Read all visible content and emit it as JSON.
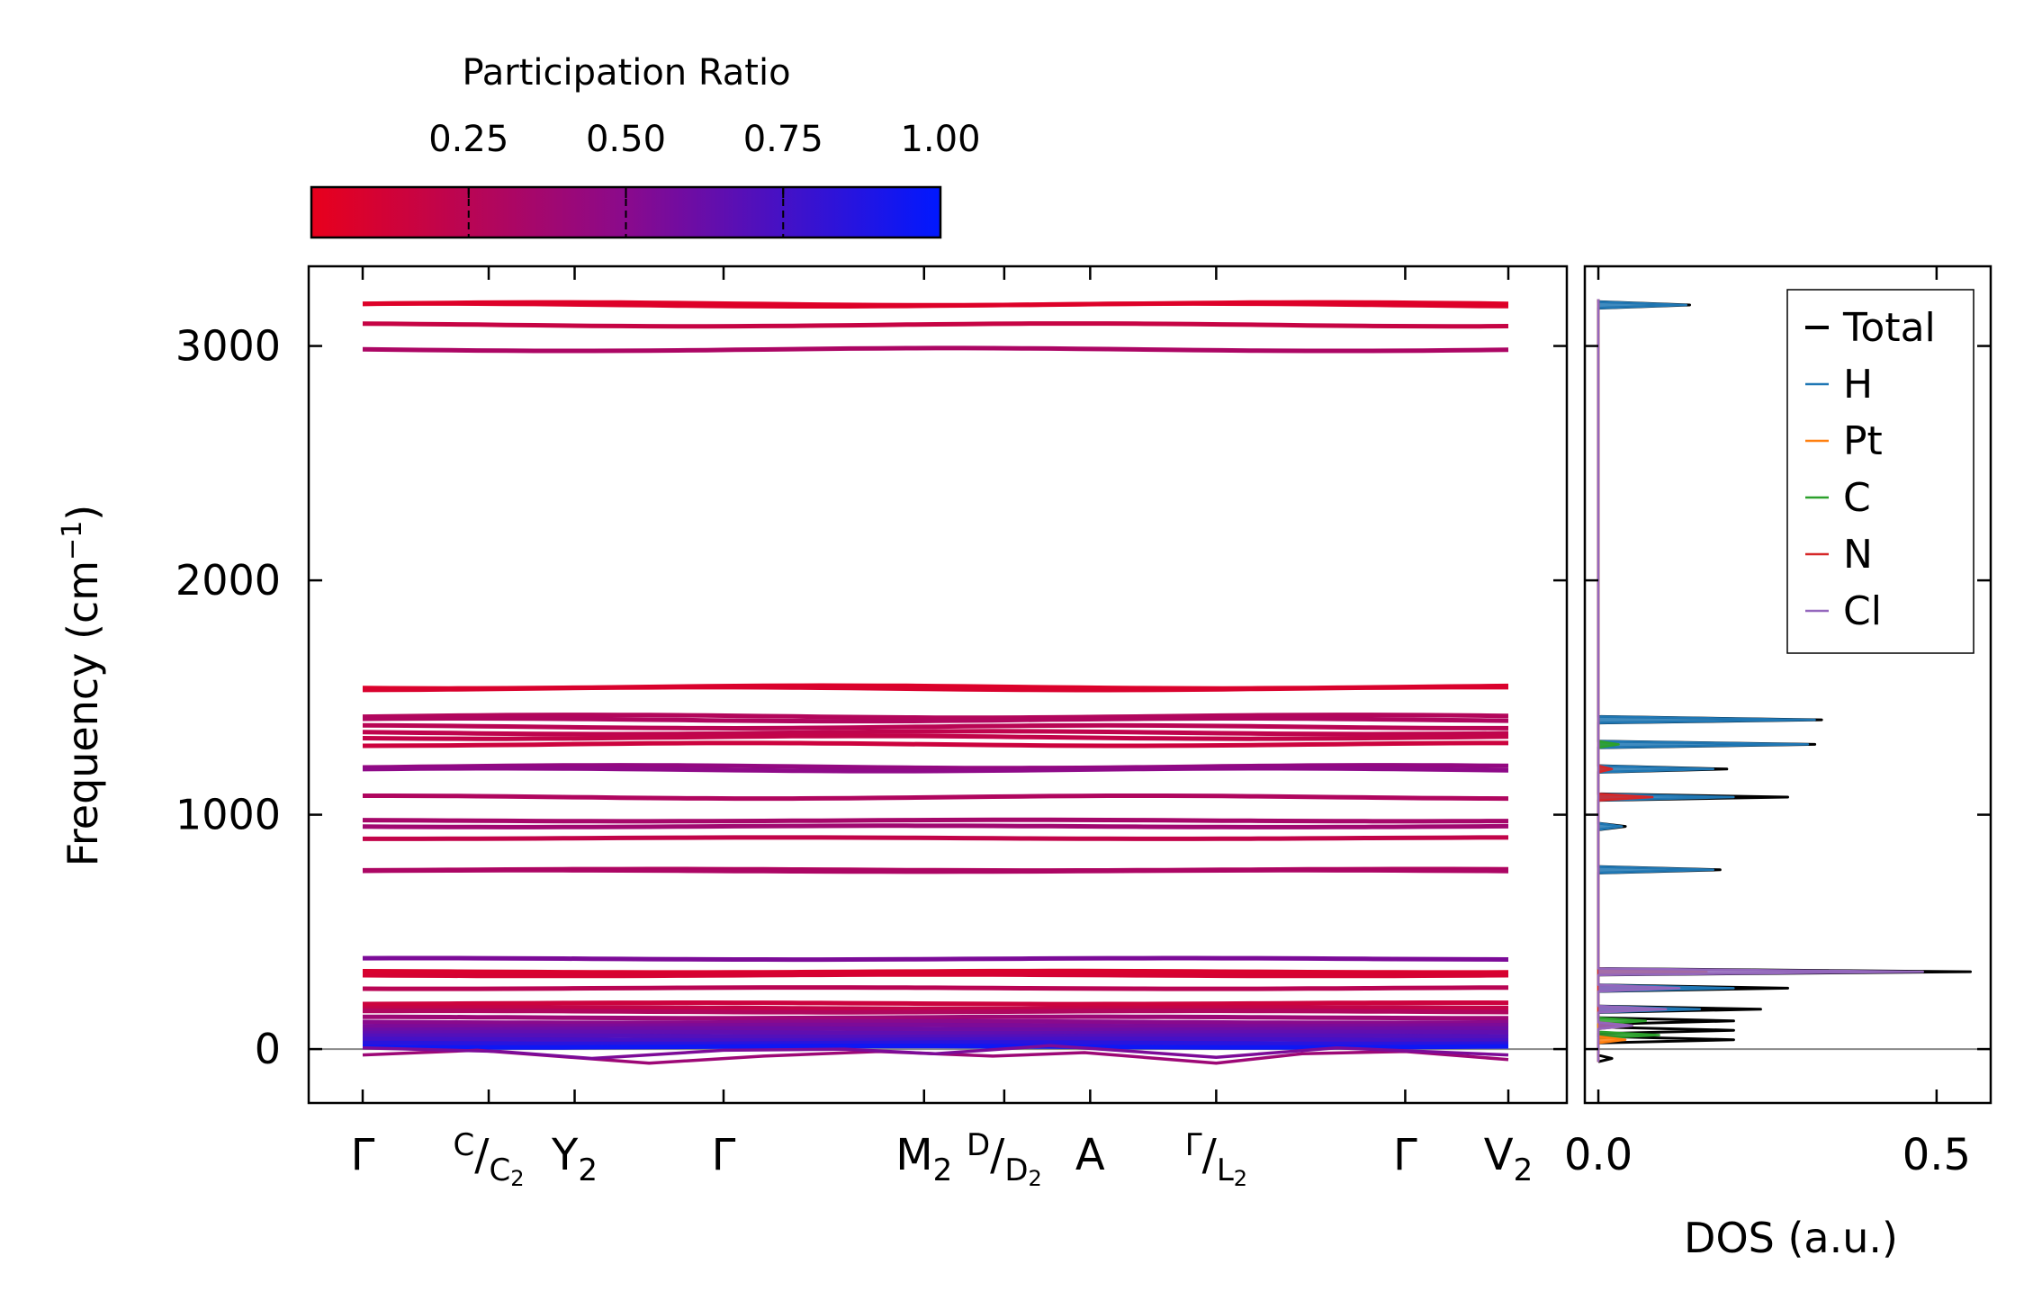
{
  "chart_data": {
    "type": "line",
    "band_plot": {
      "ylabel": "Frequency (cm",
      "ylabel_sup": "−1",
      "ylabel_close": ")",
      "ylim": [
        -230,
        3340
      ],
      "yticks": [
        0,
        1000,
        2000,
        3000
      ],
      "ytick_labels": [
        "0",
        "1000",
        "2000",
        "3000"
      ],
      "zero_line": true,
      "path_labels": [
        {
          "id": "gamma1",
          "main": "Γ",
          "frac": 0.0
        },
        {
          "id": "c-c2",
          "main": "",
          "sup": "C",
          "sub": "C",
          "sub2": "2",
          "frac": 0.11
        },
        {
          "id": "y2",
          "main": "Y",
          "sub": "2",
          "frac": 0.185
        },
        {
          "id": "gamma2",
          "main": "Γ",
          "frac": 0.315
        },
        {
          "id": "m2",
          "main": "M",
          "sub": "2",
          "frac": 0.49
        },
        {
          "id": "d-d2",
          "main": "",
          "sup": "D",
          "sub": "D",
          "sub2": "2",
          "frac": 0.56
        },
        {
          "id": "a",
          "main": "A",
          "frac": 0.635
        },
        {
          "id": "gamma-l2",
          "main": "",
          "sup": "Γ",
          "sub": "L",
          "sub2": "2",
          "frac": 0.745
        },
        {
          "id": "gamma3",
          "main": "Γ",
          "frac": 0.91
        },
        {
          "id": "v2",
          "main": "V",
          "sub": "2",
          "frac": 1.0
        }
      ],
      "bands": [
        {
          "f": 3180,
          "pr": 0.05
        },
        {
          "f": 3175,
          "pr": 0.06
        },
        {
          "f": 3090,
          "pr": 0.18
        },
        {
          "f": 2985,
          "pr": 0.32
        },
        {
          "f": 1545,
          "pr": 0.06
        },
        {
          "f": 1538,
          "pr": 0.08
        },
        {
          "f": 1420,
          "pr": 0.28
        },
        {
          "f": 1405,
          "pr": 0.3
        },
        {
          "f": 1375,
          "pr": 0.25
        },
        {
          "f": 1350,
          "pr": 0.22
        },
        {
          "f": 1330,
          "pr": 0.2
        },
        {
          "f": 1300,
          "pr": 0.15
        },
        {
          "f": 1205,
          "pr": 0.45
        },
        {
          "f": 1192,
          "pr": 0.48
        },
        {
          "f": 1075,
          "pr": 0.3
        },
        {
          "f": 975,
          "pr": 0.35
        },
        {
          "f": 950,
          "pr": 0.38
        },
        {
          "f": 900,
          "pr": 0.2
        },
        {
          "f": 765,
          "pr": 0.3
        },
        {
          "f": 760,
          "pr": 0.32
        },
        {
          "f": 385,
          "pr": 0.55
        },
        {
          "f": 330,
          "pr": 0.08
        },
        {
          "f": 315,
          "pr": 0.1
        },
        {
          "f": 260,
          "pr": 0.25
        },
        {
          "f": 195,
          "pr": 0.15
        },
        {
          "f": 175,
          "pr": 0.2
        },
        {
          "f": 160,
          "pr": 0.3
        },
        {
          "f": 135,
          "pr": 0.4
        },
        {
          "f": 115,
          "pr": 0.5
        },
        {
          "f": 100,
          "pr": 0.55
        },
        {
          "f": 85,
          "pr": 0.6
        },
        {
          "f": 70,
          "pr": 0.65
        },
        {
          "f": 55,
          "pr": 0.7
        },
        {
          "f": 40,
          "pr": 0.75
        },
        {
          "f": 25,
          "pr": 0.85
        },
        {
          "f": 10,
          "pr": 0.95
        }
      ],
      "dispersive_bands": [
        {
          "pr": 0.4,
          "points": [
            [
              0,
              -25
            ],
            [
              0.1,
              -5
            ],
            [
              0.25,
              -60
            ],
            [
              0.35,
              -30
            ],
            [
              0.45,
              -10
            ],
            [
              0.55,
              -30
            ],
            [
              0.63,
              -15
            ],
            [
              0.745,
              -60
            ],
            [
              0.82,
              -20
            ],
            [
              0.91,
              -10
            ],
            [
              1.0,
              -45
            ]
          ]
        },
        {
          "pr": 0.55,
          "points": [
            [
              0,
              5
            ],
            [
              0.12,
              -10
            ],
            [
              0.2,
              -40
            ],
            [
              0.315,
              -5
            ],
            [
              0.42,
              0
            ],
            [
              0.5,
              -20
            ],
            [
              0.6,
              15
            ],
            [
              0.745,
              -35
            ],
            [
              0.85,
              5
            ],
            [
              1.0,
              -25
            ]
          ]
        }
      ]
    },
    "colorbar": {
      "title": "Participation Ratio",
      "ticks": [
        0.25,
        0.5,
        0.75,
        1.0
      ],
      "tick_labels": [
        "0.25",
        "0.50",
        "0.75",
        "1.00"
      ],
      "range": [
        0.0,
        1.0
      ],
      "color_low": "#e8001c",
      "color_mid": "#8a0a8c",
      "color_high": "#0018ff"
    },
    "dos": {
      "xlabel": "DOS (a.u.)",
      "xlim": [
        -0.02,
        0.58
      ],
      "xticks": [
        0.0,
        0.5
      ],
      "xtick_labels": [
        "0.0",
        "0.5"
      ],
      "legend": [
        "Total",
        "H",
        "Pt",
        "C",
        "N",
        "Cl"
      ],
      "legend_position": "top-right",
      "colors": {
        "Total": "#000000",
        "H": "#1f77b4",
        "Pt": "#ff7f0e",
        "C": "#2ca02c",
        "N": "#d62728",
        "Cl": "#9467bd"
      },
      "peaks": {
        "Total": [
          [
            3175,
            0.135
          ],
          [
            1405,
            0.33
          ],
          [
            1300,
            0.32
          ],
          [
            1195,
            0.19
          ],
          [
            1075,
            0.28
          ],
          [
            950,
            0.04
          ],
          [
            765,
            0.18
          ],
          [
            330,
            0.55
          ],
          [
            260,
            0.28
          ],
          [
            170,
            0.24
          ],
          [
            120,
            0.2
          ],
          [
            80,
            0.2
          ],
          [
            40,
            0.2
          ],
          [
            -40,
            0.02
          ]
        ],
        "H": [
          [
            3175,
            0.13
          ],
          [
            1405,
            0.32
          ],
          [
            1300,
            0.31
          ],
          [
            1195,
            0.17
          ],
          [
            1075,
            0.2
          ],
          [
            950,
            0.035
          ],
          [
            765,
            0.17
          ],
          [
            260,
            0.2
          ],
          [
            170,
            0.15
          ]
        ],
        "Pt": [
          [
            330,
            0.16
          ],
          [
            40,
            0.04
          ]
        ],
        "C": [
          [
            1300,
            0.03
          ],
          [
            120,
            0.07
          ],
          [
            60,
            0.09
          ]
        ],
        "N": [
          [
            1075,
            0.08
          ],
          [
            1195,
            0.02
          ],
          [
            100,
            0.05
          ]
        ],
        "Cl": [
          [
            330,
            0.48
          ],
          [
            260,
            0.12
          ],
          [
            170,
            0.1
          ],
          [
            100,
            0.05
          ]
        ]
      }
    }
  }
}
